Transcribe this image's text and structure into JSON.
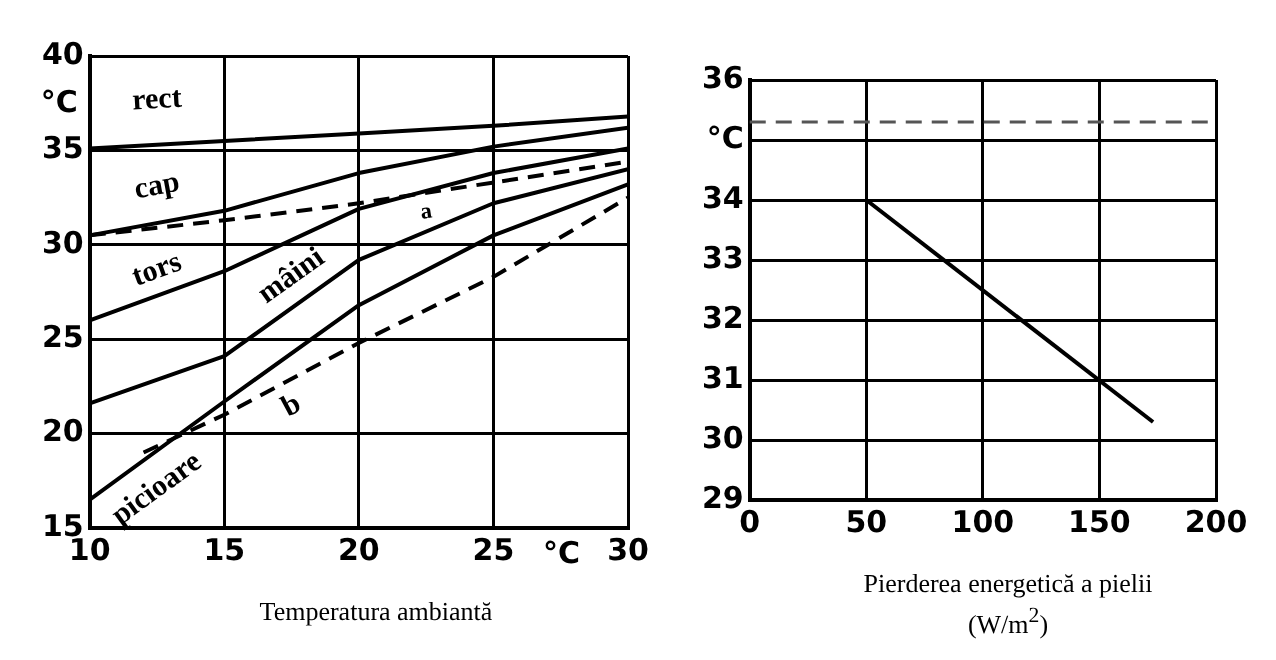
{
  "chart_data": [
    {
      "type": "line",
      "xlabel": "Temperatura ambiantă",
      "ylabel": "°C",
      "annotations": [
        "°C"
      ],
      "x": [
        10,
        15,
        20,
        25,
        30
      ],
      "xlim": [
        10,
        30
      ],
      "xticks": [
        10,
        15,
        20,
        25,
        30
      ],
      "ylim": [
        15,
        40
      ],
      "yticks": [
        15,
        20,
        25,
        30,
        35,
        40
      ],
      "grid": true,
      "legend": false,
      "marker": "none",
      "series": [
        {
          "name": "rect",
          "color": "#000000",
          "values": [
            35.1,
            35.5,
            35.9,
            36.3,
            36.8
          ]
        },
        {
          "name": "cap",
          "color": "#000000",
          "values": [
            30.5,
            31.8,
            33.8,
            35.2,
            36.2
          ]
        },
        {
          "name": "tors",
          "color": "#000000",
          "values": [
            26.0,
            28.6,
            31.9,
            33.8,
            35.1
          ]
        },
        {
          "name": "mâini",
          "color": "#000000",
          "values": [
            21.6,
            24.1,
            29.2,
            32.2,
            34.0
          ]
        },
        {
          "name": "picioare",
          "color": "#000000",
          "values": [
            16.5,
            21.7,
            26.8,
            30.5,
            33.2
          ]
        },
        {
          "name": "a",
          "color": "#000000",
          "line_style": "dashed",
          "values": [
            30.5,
            31.3,
            32.2,
            33.3,
            34.4
          ]
        },
        {
          "name": "b",
          "color": "#000000",
          "line_style": "dashed",
          "x": [
            12,
            15,
            20,
            25,
            30
          ],
          "values": [
            19.0,
            21.0,
            24.8,
            28.3,
            32.5
          ]
        }
      ]
    },
    {
      "type": "line",
      "xlabel": "Pierderea energetică a pielii\n(W/m$^{2}$)",
      "x": [
        50,
        173
      ],
      "xlim": [
        0,
        200
      ],
      "xticks": [
        0,
        50,
        100,
        150,
        200
      ],
      "ylim": [
        29,
        36
      ],
      "yticks": [
        29,
        30,
        31,
        32,
        33,
        34,
        {
          "value": 35,
          "label": "°C"
        },
        36
      ],
      "grid": true,
      "legend": false,
      "marker": "none",
      "ref_lines": [
        {
          "axis": "y",
          "value": 35.3,
          "color": "#555555",
          "line_style": "dashed"
        }
      ],
      "series": [
        {
          "color": "#000000",
          "values": [
            34.0,
            30.3
          ]
        }
      ]
    }
  ]
}
